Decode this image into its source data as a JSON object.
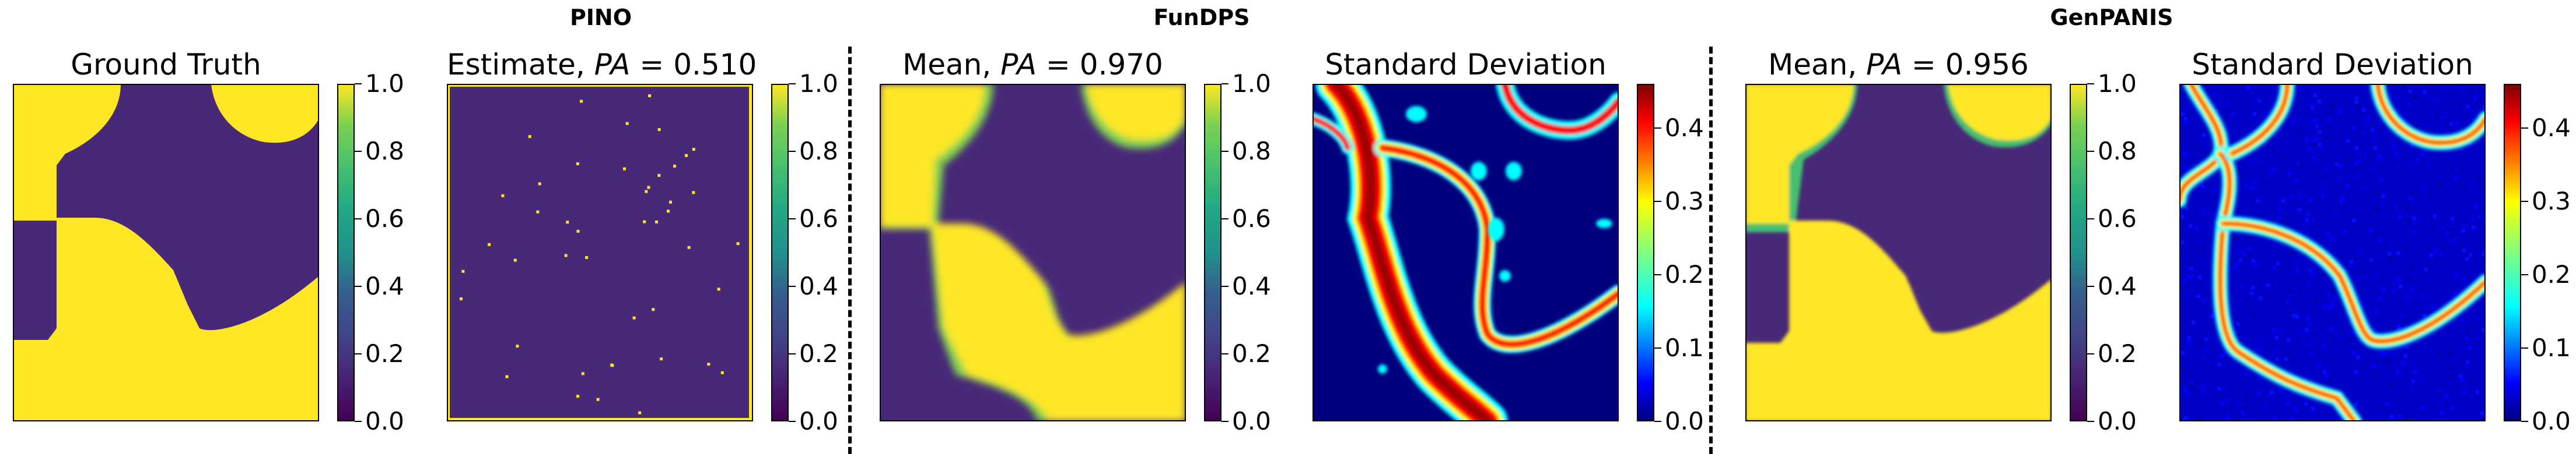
{
  "groups": [
    {
      "name": "PINO"
    },
    {
      "name": "FunDPS"
    },
    {
      "name": "GenPANIS"
    }
  ],
  "panels": [
    {
      "title": "Ground Truth",
      "pa_value": null
    },
    {
      "title": "Estimate, ",
      "pa_value": "0.510"
    },
    {
      "title": "Mean, ",
      "pa_value": "0.970"
    },
    {
      "title": "Standard Deviation",
      "pa_value": null
    },
    {
      "title": "Mean, ",
      "pa_value": "0.956"
    },
    {
      "title": "Standard Deviation",
      "pa_value": null
    }
  ],
  "pa_symbol": "PA",
  "equals": " = ",
  "colorbars": {
    "viridis_ticks": [
      "1.0",
      "0.8",
      "0.6",
      "0.4",
      "0.2",
      "0.0"
    ],
    "std_ticks": [
      "0.4",
      "0.3",
      "0.2",
      "0.1",
      "0.0"
    ]
  },
  "colors": {
    "viridis_low": "#440154",
    "viridis_high": "#fde725",
    "field_low": "#482878",
    "jet_low": "#00007f",
    "jet_high": "#7f0000"
  }
}
